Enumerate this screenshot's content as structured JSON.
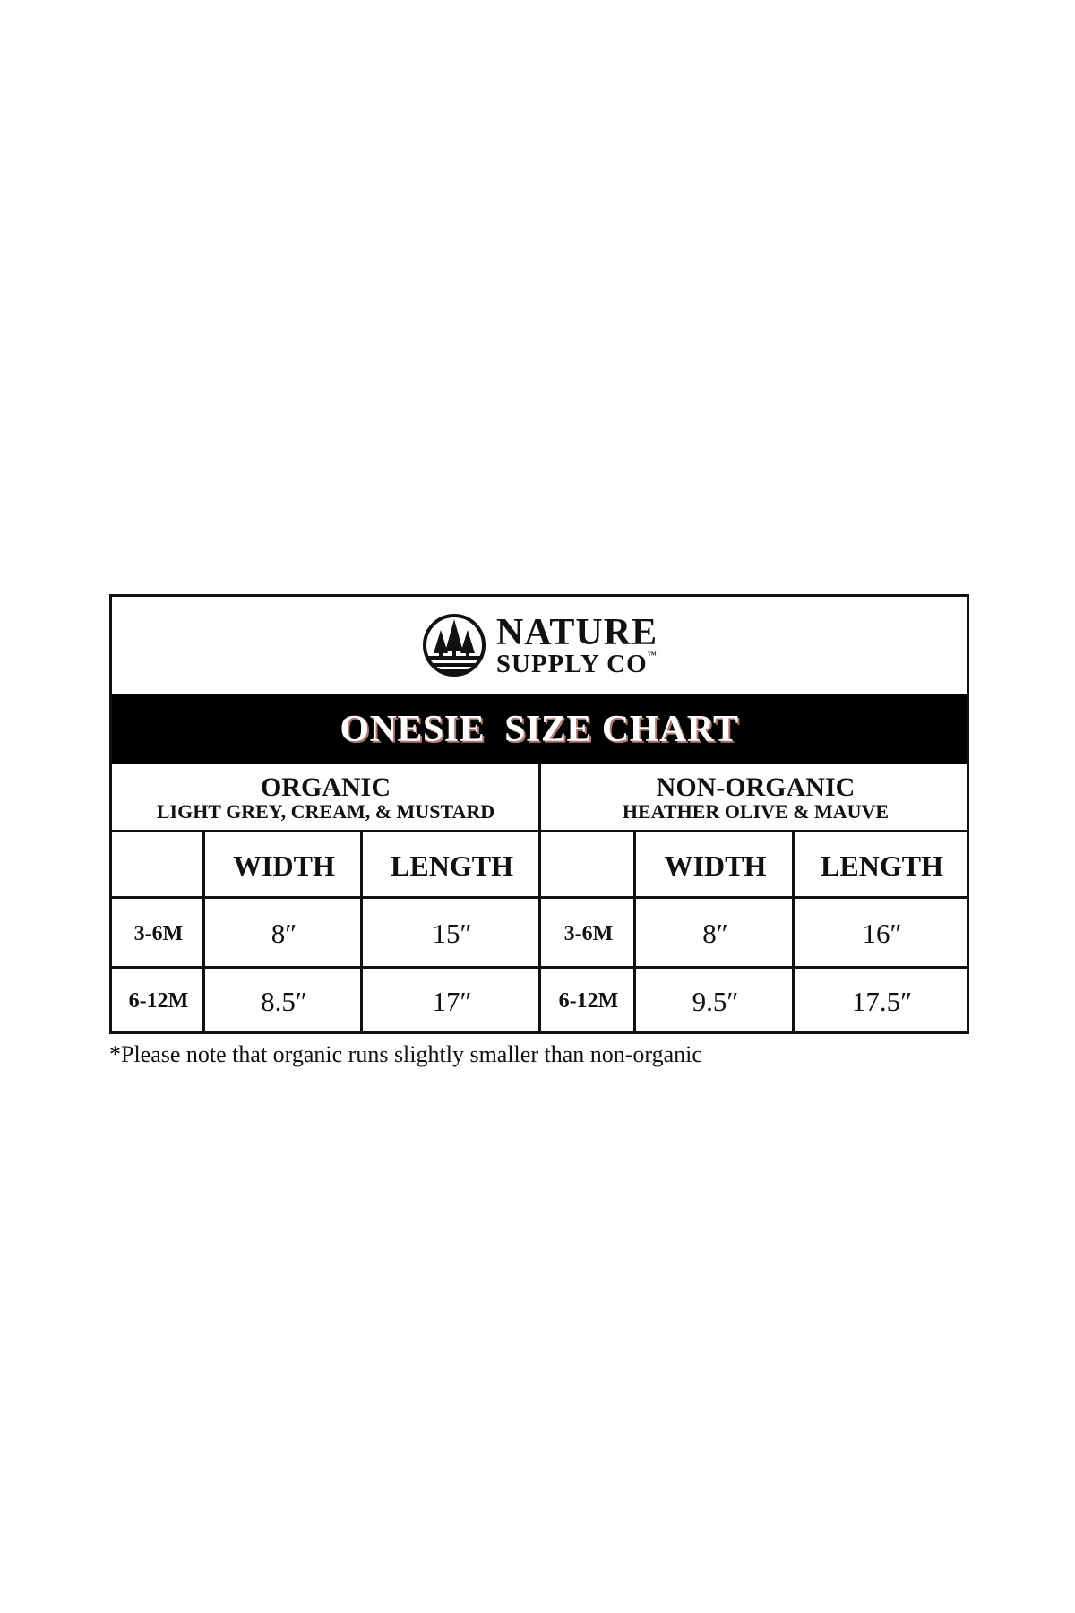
{
  "brand": {
    "line1": "NATURE",
    "line2": "SUPPLY CO",
    "tm": "™",
    "logo_icon": "pine-trees-circle-icon"
  },
  "title": "ONESIE  SIZE CHART",
  "groups": [
    {
      "title": "ORGANIC",
      "subtitle": "LIGHT GREY, CREAM, & MUSTARD",
      "columns": [
        "WIDTH",
        "LENGTH"
      ],
      "rows": [
        {
          "size": "3-6M",
          "width": "8″",
          "length": "15″"
        },
        {
          "size": "6-12M",
          "width": "8.5″",
          "length": "17″"
        }
      ]
    },
    {
      "title": "NON-ORGANIC",
      "subtitle": "HEATHER OLIVE & MAUVE",
      "columns": [
        "WIDTH",
        "LENGTH"
      ],
      "rows": [
        {
          "size": "3-6M",
          "width": "8″",
          "length": "16″"
        },
        {
          "size": "6-12M",
          "width": "9.5″",
          "length": "17.5″"
        }
      ]
    }
  ],
  "footnote": "*Please note that organic runs slightly smaller than non-organic",
  "colors": {
    "band": "#000000",
    "title_text": "#ffffff",
    "title_shadow": "#b07a70"
  }
}
